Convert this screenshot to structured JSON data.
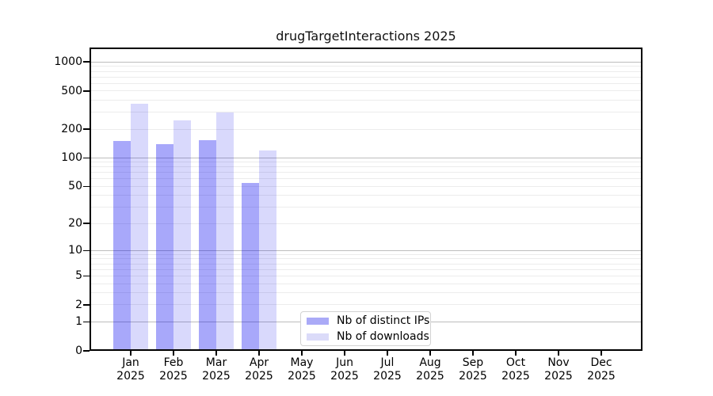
{
  "chart_data": {
    "type": "bar",
    "title": "drugTargetInteractions 2025",
    "categories": [
      "Jan",
      "Feb",
      "Mar",
      "Apr",
      "May",
      "Jun",
      "Jul",
      "Aug",
      "Sep",
      "Oct",
      "Nov",
      "Dec"
    ],
    "category_year": "2025",
    "series": [
      {
        "name": "Nb of distinct IPs",
        "bar_color": "rgba(0,0,240,0.34)",
        "swatch_color": "#aaaaf7",
        "values": [
          150,
          140,
          152,
          54,
          null,
          null,
          null,
          null,
          null,
          null,
          null,
          null
        ]
      },
      {
        "name": "Nb of downloads",
        "bar_color": "rgba(0,0,235,0.15)",
        "swatch_color": "#dbdbf9",
        "values": [
          370,
          245,
          300,
          120,
          null,
          null,
          null,
          null,
          null,
          null,
          null,
          null
        ]
      }
    ],
    "xlabel": "",
    "ylabel": "",
    "y_axis": {
      "scale": "log1p",
      "tick_values": [
        0,
        1,
        2,
        5,
        10,
        20,
        50,
        100,
        200,
        500,
        1000
      ],
      "tick_labels": [
        "0",
        "1",
        "2",
        "5",
        "10",
        "20",
        "50",
        "100",
        "200",
        "500",
        "1000"
      ],
      "data_max": 1000,
      "top_margin_factor": 1.05
    },
    "grid": {
      "enabled": true,
      "major_color": "#bdbdbd",
      "minor_color": "#ececec",
      "minor_values": [
        2,
        3,
        4,
        5,
        6,
        7,
        8,
        9,
        20,
        30,
        40,
        50,
        60,
        70,
        80,
        90,
        200,
        300,
        400,
        500,
        600,
        700,
        800,
        900
      ],
      "major_values": [
        1,
        10,
        100,
        1000
      ]
    },
    "legend": {
      "position": "lower center",
      "entries": [
        "Nb of distinct IPs",
        "Nb of downloads"
      ]
    }
  }
}
